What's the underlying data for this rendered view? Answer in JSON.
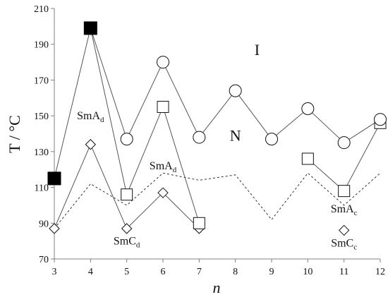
{
  "chart_data": {
    "type": "line",
    "xlabel": "n",
    "ylabel": "T / °C",
    "xlim": [
      3,
      12
    ],
    "ylim": [
      70,
      210
    ],
    "x_ticks": [
      3,
      4,
      5,
      6,
      7,
      8,
      9,
      10,
      11,
      12
    ],
    "y_ticks": [
      70,
      90,
      110,
      130,
      150,
      170,
      190,
      210
    ],
    "grid": false,
    "legend": "none",
    "series": [
      {
        "marker": "circle",
        "line": "solid",
        "points": [
          [
            4,
            199
          ],
          [
            5,
            137
          ],
          [
            6,
            180
          ],
          [
            7,
            138
          ],
          [
            8,
            164
          ],
          [
            9,
            137
          ],
          [
            10,
            154
          ],
          [
            11,
            135
          ],
          [
            12,
            148
          ]
        ]
      },
      {
        "marker": "square-open",
        "line": "solid",
        "points": [
          [
            4,
            199
          ],
          [
            5,
            106
          ],
          [
            6,
            155
          ],
          [
            7,
            90
          ]
        ],
        "points2": [
          [
            10,
            126
          ],
          [
            11,
            108
          ],
          [
            12,
            146
          ]
        ]
      },
      {
        "marker": "square-filled",
        "line": "solid",
        "points": [
          [
            3,
            115
          ],
          [
            4,
            199
          ]
        ]
      },
      {
        "marker": "diamond",
        "line": "solid",
        "points": [
          [
            3,
            87
          ],
          [
            4,
            134
          ],
          [
            5,
            87
          ],
          [
            6,
            107
          ],
          [
            7,
            87
          ]
        ],
        "extra_points": [
          [
            11,
            86
          ]
        ]
      },
      {
        "marker": "none",
        "line": "dotted",
        "points": [
          [
            3,
            87
          ],
          [
            4,
            112
          ],
          [
            5,
            100
          ],
          [
            6,
            118
          ],
          [
            7,
            114
          ],
          [
            8,
            117
          ],
          [
            9,
            92
          ],
          [
            10,
            118
          ],
          [
            11,
            100
          ],
          [
            12,
            118
          ]
        ]
      }
    ],
    "annotations": [
      {
        "main": "I",
        "sub": "",
        "at": [
          8.6,
          184
        ],
        "kind": "region"
      },
      {
        "main": "N",
        "sub": "",
        "at": [
          8.0,
          136
        ],
        "kind": "region"
      },
      {
        "main": "SmA",
        "sub": "d",
        "at": [
          4.0,
          148
        ],
        "kind": "phase"
      },
      {
        "main": "SmA",
        "sub": "d",
        "at": [
          6.0,
          120
        ],
        "kind": "phase"
      },
      {
        "main": "SmC",
        "sub": "d",
        "at": [
          5.0,
          78
        ],
        "kind": "phase"
      },
      {
        "main": "SmA",
        "sub": "c",
        "at": [
          11.0,
          96
        ],
        "kind": "phase"
      },
      {
        "main": "SmC",
        "sub": "c",
        "at": [
          11.0,
          77
        ],
        "kind": "phase"
      }
    ],
    "colors": {
      "line": "#555555",
      "marker_fill": "#ffffff",
      "filled": "#000000",
      "axis": "#808080"
    }
  }
}
